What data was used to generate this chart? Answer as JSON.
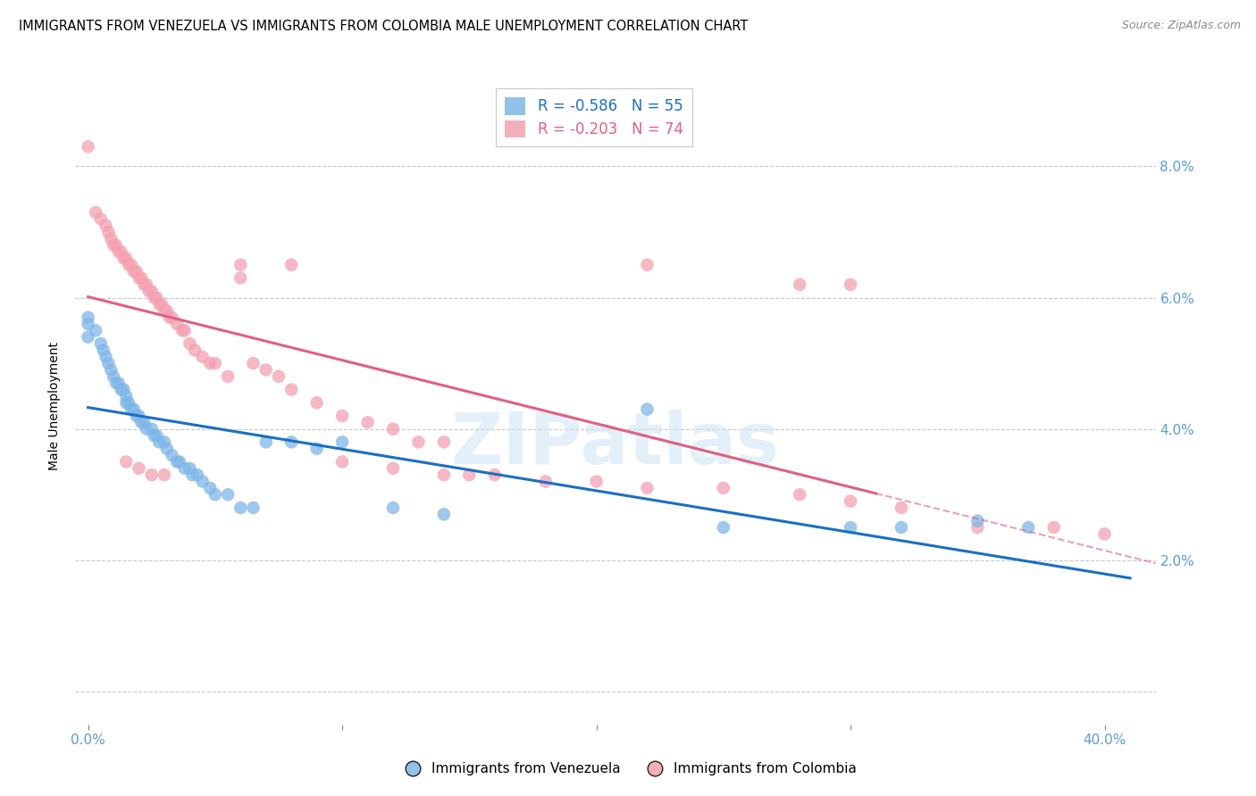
{
  "title": "IMMIGRANTS FROM VENEZUELA VS IMMIGRANTS FROM COLOMBIA MALE UNEMPLOYMENT CORRELATION CHART",
  "source": "Source: ZipAtlas.com",
  "ylabel": "Male Unemployment",
  "xlim": [
    -0.005,
    0.42
  ],
  "ylim": [
    -0.005,
    0.092
  ],
  "venezuela_color": "#7EB6E8",
  "colombia_color": "#F4A0B0",
  "venezuela_line_color": "#1a6fc4",
  "colombia_line_color": "#e06080",
  "venezuela_R": -0.586,
  "venezuela_N": 55,
  "colombia_R": -0.203,
  "colombia_N": 74,
  "watermark": "ZIPatlas",
  "legend_labels": [
    "Immigrants from Venezuela",
    "Immigrants from Colombia"
  ],
  "background_color": "#ffffff",
  "grid_color": "#c8c8c8",
  "tick_color": "#5b9bd5",
  "colombia_dash_split": 0.31,
  "venezuela_scatter_x": [
    0.0,
    0.0,
    0.0,
    0.003,
    0.005,
    0.006,
    0.007,
    0.008,
    0.009,
    0.01,
    0.011,
    0.012,
    0.013,
    0.014,
    0.015,
    0.015,
    0.016,
    0.017,
    0.018,
    0.019,
    0.02,
    0.021,
    0.022,
    0.023,
    0.025,
    0.026,
    0.027,
    0.028,
    0.03,
    0.031,
    0.033,
    0.035,
    0.036,
    0.038,
    0.04,
    0.041,
    0.043,
    0.045,
    0.048,
    0.05,
    0.055,
    0.06,
    0.065,
    0.07,
    0.08,
    0.09,
    0.1,
    0.12,
    0.14,
    0.22,
    0.25,
    0.3,
    0.32,
    0.35,
    0.37
  ],
  "venezuela_scatter_y": [
    0.057,
    0.056,
    0.054,
    0.055,
    0.053,
    0.052,
    0.051,
    0.05,
    0.049,
    0.048,
    0.047,
    0.047,
    0.046,
    0.046,
    0.045,
    0.044,
    0.044,
    0.043,
    0.043,
    0.042,
    0.042,
    0.041,
    0.041,
    0.04,
    0.04,
    0.039,
    0.039,
    0.038,
    0.038,
    0.037,
    0.036,
    0.035,
    0.035,
    0.034,
    0.034,
    0.033,
    0.033,
    0.032,
    0.031,
    0.03,
    0.03,
    0.028,
    0.028,
    0.038,
    0.038,
    0.037,
    0.038,
    0.028,
    0.027,
    0.043,
    0.025,
    0.025,
    0.025,
    0.026,
    0.025
  ],
  "colombia_scatter_x": [
    0.0,
    0.003,
    0.005,
    0.007,
    0.008,
    0.009,
    0.01,
    0.011,
    0.012,
    0.013,
    0.014,
    0.015,
    0.016,
    0.017,
    0.018,
    0.019,
    0.02,
    0.021,
    0.022,
    0.023,
    0.024,
    0.025,
    0.026,
    0.027,
    0.028,
    0.029,
    0.03,
    0.031,
    0.032,
    0.033,
    0.035,
    0.037,
    0.038,
    0.04,
    0.042,
    0.045,
    0.048,
    0.05,
    0.055,
    0.06,
    0.065,
    0.07,
    0.075,
    0.08,
    0.09,
    0.1,
    0.11,
    0.12,
    0.13,
    0.14,
    0.15,
    0.16,
    0.18,
    0.2,
    0.22,
    0.25,
    0.28,
    0.3,
    0.32,
    0.35,
    0.38,
    0.4,
    0.06,
    0.08,
    0.1,
    0.12,
    0.14,
    0.22,
    0.28,
    0.3,
    0.015,
    0.02,
    0.025,
    0.03
  ],
  "colombia_scatter_y": [
    0.083,
    0.073,
    0.072,
    0.071,
    0.07,
    0.069,
    0.068,
    0.068,
    0.067,
    0.067,
    0.066,
    0.066,
    0.065,
    0.065,
    0.064,
    0.064,
    0.063,
    0.063,
    0.062,
    0.062,
    0.061,
    0.061,
    0.06,
    0.06,
    0.059,
    0.059,
    0.058,
    0.058,
    0.057,
    0.057,
    0.056,
    0.055,
    0.055,
    0.053,
    0.052,
    0.051,
    0.05,
    0.05,
    0.048,
    0.063,
    0.05,
    0.049,
    0.048,
    0.046,
    0.044,
    0.042,
    0.041,
    0.04,
    0.038,
    0.038,
    0.033,
    0.033,
    0.032,
    0.032,
    0.031,
    0.031,
    0.03,
    0.029,
    0.028,
    0.025,
    0.025,
    0.024,
    0.065,
    0.065,
    0.035,
    0.034,
    0.033,
    0.065,
    0.062,
    0.062,
    0.035,
    0.034,
    0.033,
    0.033
  ]
}
